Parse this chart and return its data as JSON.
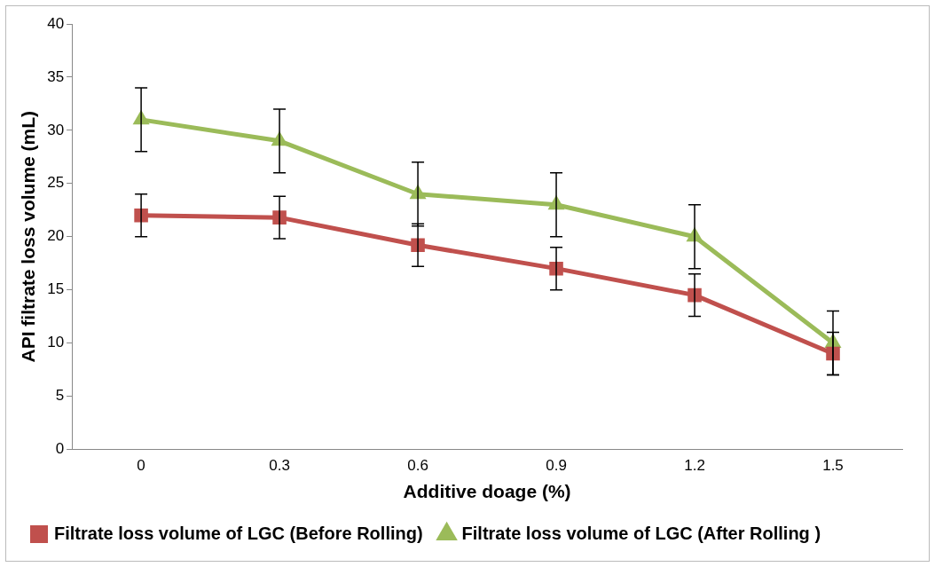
{
  "chart_data": {
    "type": "line",
    "xlabel": "Additive doage (%)",
    "ylabel": "API filtrate loss volume (mL)",
    "categories": [
      "0",
      "0.3",
      "0.6",
      "0.9",
      "1.2",
      "1.5"
    ],
    "series": [
      {
        "name": "Filtrate loss volume of LGC (Before Rolling)",
        "color": "#c0504d",
        "marker": "square",
        "values": [
          22,
          21.8,
          19.2,
          17,
          14.5,
          9
        ],
        "errors": [
          2,
          2,
          2,
          2,
          2,
          2
        ]
      },
      {
        "name": "Filtrate loss volume of LGC (After Rolling )",
        "color": "#9bbb59",
        "marker": "triangle",
        "values": [
          31,
          29,
          24,
          23,
          20,
          10
        ],
        "errors": [
          3,
          3,
          3,
          3,
          3,
          3
        ]
      }
    ],
    "ylim": [
      0,
      40
    ],
    "yticks": [
      0,
      5,
      10,
      15,
      20,
      25,
      30,
      35,
      40
    ],
    "grid": false,
    "legend": "bottom",
    "line_style": "solid"
  }
}
